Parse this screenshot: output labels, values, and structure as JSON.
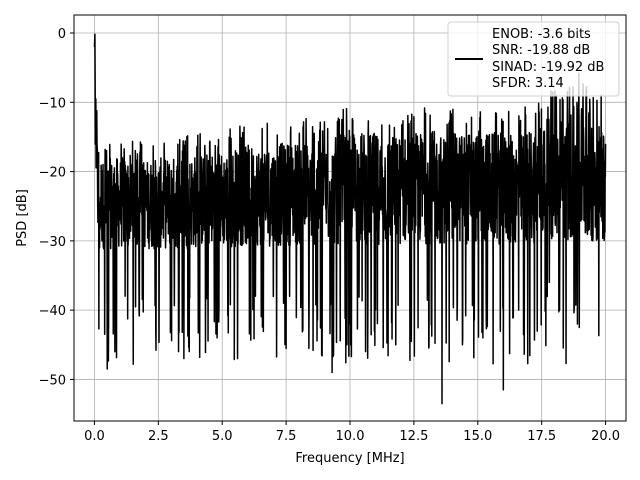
{
  "chart_data": {
    "type": "line",
    "title": "",
    "xlabel": "Frequency [MHz]",
    "ylabel": "PSD [dB]",
    "xlim": [
      -0.8,
      20.8
    ],
    "ylim": [
      -56,
      2.6
    ],
    "xticks": [
      0.0,
      2.5,
      5.0,
      7.5,
      10.0,
      12.5,
      15.0,
      17.5,
      20.0
    ],
    "xtick_labels": [
      "0.0",
      "2.5",
      "5.0",
      "7.5",
      "10.0",
      "12.5",
      "15.0",
      "17.5",
      "20.0"
    ],
    "yticks": [
      0,
      -10,
      -20,
      -30,
      -40,
      -50
    ],
    "ytick_labels": [
      "0",
      "−10",
      "−20",
      "−30",
      "−40",
      "−50"
    ],
    "grid": true,
    "legend_position": "top-right",
    "series": [
      {
        "name": "",
        "color": "#000000",
        "description_points": {
          "x": [
            0.0,
            0.02,
            0.05,
            0.1,
            0.2,
            0.4,
            0.5,
            0.8,
            1.2,
            2.4,
            3.5,
            4.8,
            5.6,
            6.3,
            7.4,
            8.4,
            9.3,
            10.0,
            11.0,
            12.4,
            13.6,
            14.4,
            15.2,
            16.0,
            16.6,
            17.0,
            17.8,
            18.2,
            18.9,
            19.5,
            20.0
          ],
          "y": [
            -2.0,
            0.0,
            -9.5,
            -16.0,
            -31.0,
            -43.5,
            -48.5,
            -46.0,
            -38.0,
            -43.0,
            -47.0,
            -44.0,
            -47.0,
            -38.0,
            -39.0,
            -38.0,
            -49.0,
            -42.0,
            -40.0,
            -44.5,
            -53.5,
            -45.0,
            -44.0,
            -51.5,
            -40.0,
            -26.0,
            -36.0,
            -40.0,
            -42.0,
            -30.0,
            -16.0
          ]
        },
        "upper_envelope": {
          "x": [
            0.0,
            0.02,
            0.1,
            0.3,
            1.0,
            2.0,
            3.0,
            4.0,
            5.0,
            6.0,
            7.0,
            8.0,
            9.0,
            10.0,
            11.0,
            12.0,
            13.0,
            14.0,
            15.0,
            16.0,
            16.5,
            17.0,
            17.5,
            18.0,
            18.5,
            19.0,
            19.5,
            20.0
          ],
          "y": [
            -2.0,
            0.0,
            -9.5,
            -15.5,
            -15.0,
            -15.5,
            -15.0,
            -14.5,
            -14.0,
            -13.0,
            -13.0,
            -12.0,
            -12.5,
            -10.5,
            -11.0,
            -11.5,
            -10.5,
            -11.0,
            -10.5,
            -11.0,
            -11.5,
            -10.0,
            -9.0,
            -8.0,
            -8.0,
            -5.0,
            -8.0,
            -9.5
          ]
        },
        "median_band_db": [
          -34.0,
          -14.0
        ]
      }
    ]
  },
  "legend": {
    "lines": [
      "ENOB: -3.6 bits",
      "SNR: -19.88 dB",
      "SINAD: -19.92 dB",
      "SFDR: 3.14"
    ]
  },
  "colors": {
    "grid": "#b0b0b0",
    "line": "#000000",
    "axes": "#000000",
    "legend_border": "#d0d0d0"
  }
}
